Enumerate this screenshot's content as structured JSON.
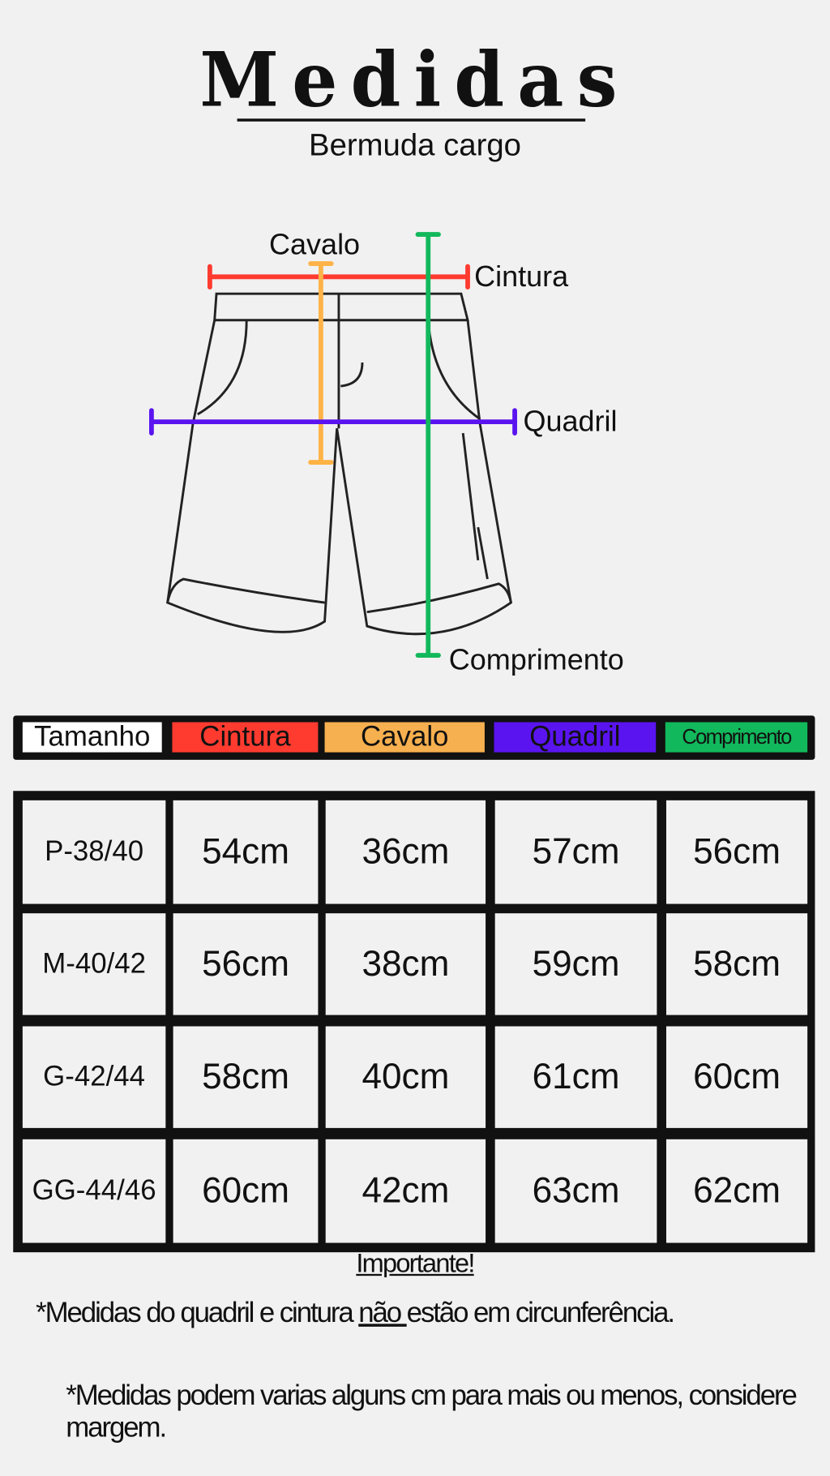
{
  "title": "Medidas",
  "subtitle": "Bermuda cargo",
  "diagram": {
    "labels": {
      "cavalo": "Cavalo",
      "cintura": "Cintura",
      "quadril": "Quadril",
      "comprimento": "Comprimento"
    },
    "colors": {
      "cintura": "#ff3b30",
      "cavalo": "#ffb347",
      "quadril": "#5a14f0",
      "comprimento": "#12b85c"
    }
  },
  "table": {
    "headers": [
      "Tamanho",
      "Cintura",
      "Cavalo",
      "Quadril",
      "Comprimento"
    ],
    "header_colors": [
      "#ffffff",
      "#ff3b30",
      "#f7b04f",
      "#5a14f0",
      "#12b85c"
    ],
    "rows": [
      [
        "P-38/40",
        "54cm",
        "36cm",
        "57cm",
        "56cm"
      ],
      [
        "M-40/42",
        "56cm",
        "38cm",
        "59cm",
        "58cm"
      ],
      [
        "G-42/44",
        "58cm",
        "40cm",
        "61cm",
        "60cm"
      ],
      [
        "GG-44/46",
        "60cm",
        "42cm",
        "63cm",
        "62cm"
      ]
    ]
  },
  "notes": {
    "heading": "Importante!",
    "note1_before": "*Medidas do quadril e cintura ",
    "note1_emph": "não ",
    "note1_after": "estão em circunferência.",
    "note2": "*Medidas podem varias alguns cm para mais ou menos, considere margem."
  }
}
